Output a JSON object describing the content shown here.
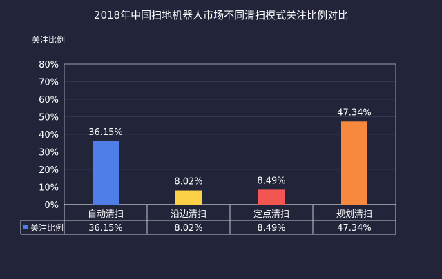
{
  "chart_data": {
    "type": "bar",
    "title": "2018年中国扫地机器人市场不同清扫模式关注比例对比",
    "ylabel": "关注比例",
    "xlabel": "",
    "categories": [
      "自动清扫",
      "沿边清扫",
      "定点清扫",
      "规划清扫"
    ],
    "values": [
      36.15,
      8.02,
      8.49,
      47.34
    ],
    "value_labels": [
      "36.15%",
      "8.02%",
      "8.49%",
      "47.34%"
    ],
    "colors": [
      "#4f7fe6",
      "#fbd148",
      "#f25552",
      "#f7893f"
    ],
    "ylim": [
      0,
      80
    ],
    "yticks": [
      "0%",
      "10%",
      "20%",
      "30%",
      "40%",
      "50%",
      "60%",
      "70%",
      "80%"
    ],
    "grid": true,
    "data_table": {
      "series_name": "关注比例",
      "marker_color": "#4f7fe6",
      "cells": [
        "36.15%",
        "8.02%",
        "8.49%",
        "47.34%"
      ]
    }
  }
}
